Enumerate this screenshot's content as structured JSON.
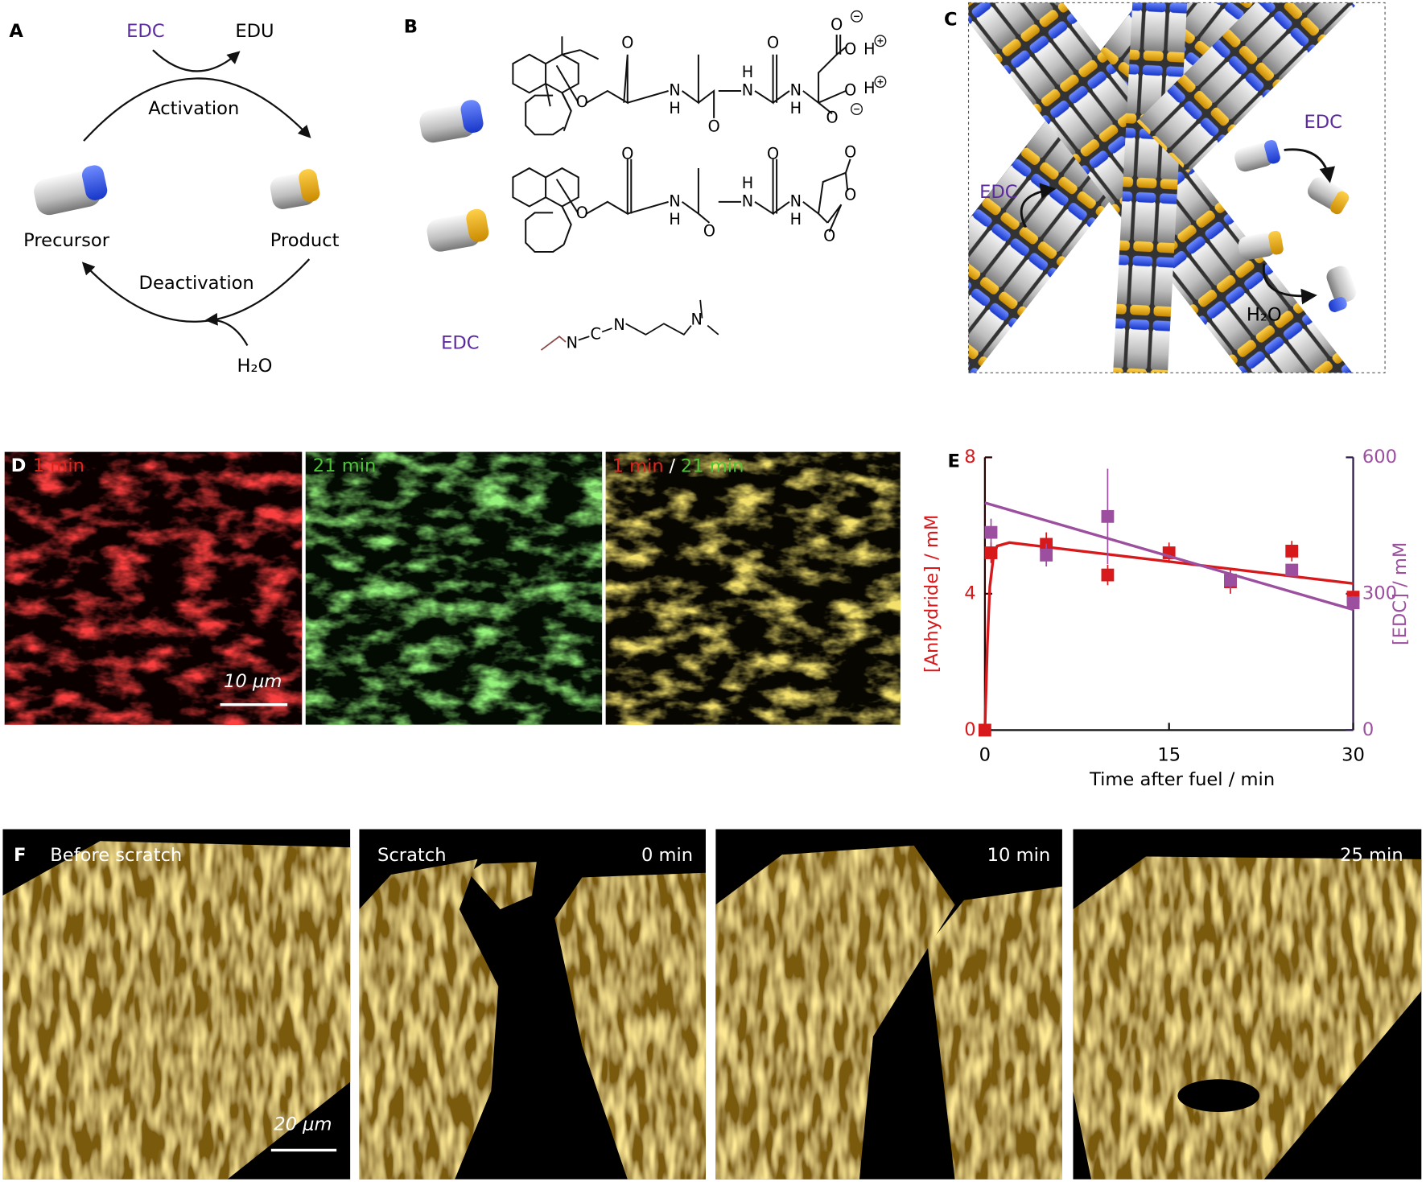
{
  "panel_a": {
    "label": "A",
    "fuel": "EDC",
    "waste": "EDU",
    "activation": "Activation",
    "precursor": "Precursor",
    "product": "Product",
    "deactivation": "Deactivation",
    "water": "H₂O"
  },
  "panel_b": {
    "label": "B",
    "precursor_atoms": [
      "O",
      "O",
      "N",
      "H",
      "O",
      "N",
      "H",
      "O",
      "N",
      "H",
      "O",
      "O",
      "H",
      "O",
      "H",
      "O"
    ],
    "product_atoms": [
      "O",
      "O",
      "N",
      "H",
      "O",
      "N",
      "H",
      "O",
      "N",
      "H",
      "O",
      "O",
      "O"
    ],
    "edc": "EDC",
    "edc_atoms": [
      "N",
      "C",
      "N",
      "N"
    ]
  },
  "panel_c": {
    "label": "C",
    "edc_right": "EDC",
    "edc_left": "EDC",
    "water": "H₂O"
  },
  "panel_d": {
    "label": "D",
    "image_1_title": "1 min",
    "image_2_title": "21 min",
    "image_3_title_red": "1 min",
    "image_3_separator": "/",
    "image_3_title_green": "21 min",
    "scale_bar": "10 μm"
  },
  "panel_e": {
    "label": "E"
  },
  "chart_data": {
    "type": "scatter",
    "x_label": "Time after fuel / min",
    "y_label": "[Anhydride] / mM",
    "y2_label": "[EDC] / mM",
    "xlim": [
      0,
      30
    ],
    "xticks": [
      0,
      15,
      30
    ],
    "ylim": [
      0,
      8
    ],
    "yticks": [
      0,
      4,
      8
    ],
    "y2lim": [
      0,
      600
    ],
    "y2ticks": [
      0,
      300,
      600
    ],
    "series": [
      {
        "color": "#d7191c",
        "x": [
          0,
          0.5,
          5,
          10,
          15,
          20,
          25,
          30
        ],
        "values": [
          0,
          5.2,
          5.45,
          4.55,
          5.2,
          4.35,
          5.25,
          3.9
        ],
        "errors": [
          0,
          0.3,
          0.35,
          0.3,
          0.3,
          0.35,
          0.3,
          0.2
        ],
        "fit_x": [
          0,
          0.2,
          0.4,
          0.7,
          1,
          2,
          30
        ],
        "fit_values": [
          0,
          2.5,
          4.2,
          5.1,
          5.4,
          5.5,
          4.3
        ]
      },
      {
        "axis": "y2",
        "color": "#9b4f9e",
        "x": [
          0.5,
          5,
          10,
          20,
          25,
          30
        ],
        "values": [
          435,
          385,
          470,
          330,
          352,
          280
        ],
        "errors": [
          30,
          25,
          105,
          20,
          10,
          15
        ],
        "fit_x": [
          0,
          30
        ],
        "fit_values": [
          500,
          265
        ]
      }
    ]
  },
  "panel_f": {
    "label": "F",
    "image_1_title": "Before scratch",
    "image_2_title": "Scratch",
    "image_2_time": "0 min",
    "image_3_time": "10 min",
    "image_4_time": "25 min",
    "scale_bar": "20 μm"
  }
}
